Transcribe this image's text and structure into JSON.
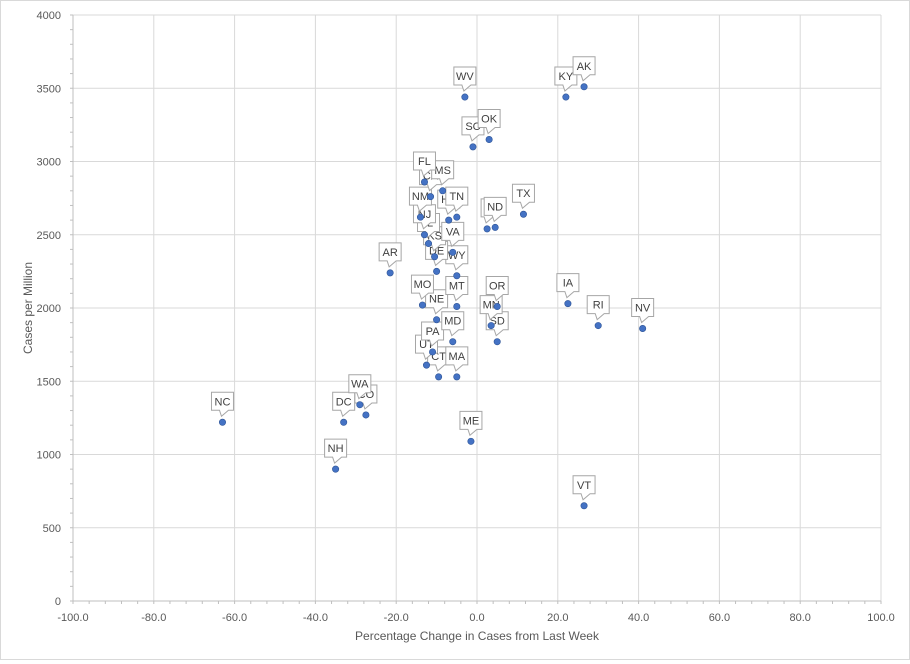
{
  "chart_data": {
    "type": "scatter",
    "title": "",
    "xlabel": "Percentage Change  in Cases from Last Week",
    "ylabel": "Cases per Million",
    "xlim": [
      -100,
      100
    ],
    "ylim": [
      0,
      4000
    ],
    "xticks": [
      -100,
      -80,
      -60,
      -40,
      -20,
      0,
      20,
      40,
      60,
      80,
      100
    ],
    "yticks": [
      0,
      500,
      1000,
      1500,
      2000,
      2500,
      3000,
      3500,
      4000
    ],
    "xtick_labels": [
      "-100.0",
      "-80.0",
      "-60.0",
      "-40.0",
      "-20.0",
      "0.0",
      "20.0",
      "40.0",
      "60.0",
      "80.0",
      "100.0"
    ],
    "ytick_labels": [
      "0",
      "500",
      "1000",
      "1500",
      "2000",
      "2500",
      "3000",
      "3500",
      "4000"
    ],
    "grid": true,
    "marker_color": "#4472c4",
    "points": [
      {
        "label": "AK",
        "x": 26.5,
        "y": 3510
      },
      {
        "label": "KY",
        "x": 22.0,
        "y": 3440
      },
      {
        "label": "WV",
        "x": -3.0,
        "y": 3440
      },
      {
        "label": "OK",
        "x": 3.0,
        "y": 3150
      },
      {
        "label": "SC",
        "x": -1.0,
        "y": 3100
      },
      {
        "label": "FL",
        "x": -13.0,
        "y": 2860
      },
      {
        "label": "MS",
        "x": -8.5,
        "y": 2800
      },
      {
        "label": "CA",
        "x": -11.5,
        "y": 2760
      },
      {
        "label": "TX",
        "x": 11.5,
        "y": 2640
      },
      {
        "label": "NM",
        "x": -14.0,
        "y": 2620
      },
      {
        "label": "TN",
        "x": -5.0,
        "y": 2620
      },
      {
        "label": "HA",
        "x": -7.0,
        "y": 2600
      },
      {
        "label": "ND",
        "x": 4.5,
        "y": 2550
      },
      {
        "label": "",
        "x": 2.5,
        "y": 2540
      },
      {
        "label": "NJ",
        "x": -13.0,
        "y": 2500
      },
      {
        "label": "IL",
        "x": -12.0,
        "y": 2440
      },
      {
        "label": "VA",
        "x": -6.0,
        "y": 2380
      },
      {
        "label": "KS",
        "x": -10.5,
        "y": 2350
      },
      {
        "label": "DE",
        "x": -10.0,
        "y": 2250
      },
      {
        "label": "WY",
        "x": -5.0,
        "y": 2220
      },
      {
        "label": "AR",
        "x": -21.5,
        "y": 2240
      },
      {
        "label": "MO",
        "x": -13.5,
        "y": 2020
      },
      {
        "label": "MT",
        "x": -5.0,
        "y": 2010
      },
      {
        "label": "OR",
        "x": 5.0,
        "y": 2010
      },
      {
        "label": "IA",
        "x": 22.5,
        "y": 2030
      },
      {
        "label": "NE",
        "x": -10.0,
        "y": 1920
      },
      {
        "label": "RI",
        "x": 30.0,
        "y": 1880
      },
      {
        "label": "NV",
        "x": 41.0,
        "y": 1860
      },
      {
        "label": "MN",
        "x": 3.5,
        "y": 1880
      },
      {
        "label": "SD",
        "x": 5.0,
        "y": 1770
      },
      {
        "label": "MD",
        "x": -6.0,
        "y": 1770
      },
      {
        "label": "PA",
        "x": -11.0,
        "y": 1700
      },
      {
        "label": "UT",
        "x": -12.5,
        "y": 1610
      },
      {
        "label": "CT",
        "x": -9.5,
        "y": 1530
      },
      {
        "label": "MA",
        "x": -5.0,
        "y": 1530
      },
      {
        "label": "WA",
        "x": -29.0,
        "y": 1340
      },
      {
        "label": "CO",
        "x": -27.5,
        "y": 1270
      },
      {
        "label": "DC",
        "x": -33.0,
        "y": 1220
      },
      {
        "label": "NC",
        "x": -63.0,
        "y": 1220
      },
      {
        "label": "ME",
        "x": -1.5,
        "y": 1090
      },
      {
        "label": "NH",
        "x": -35.0,
        "y": 900
      },
      {
        "label": "VT",
        "x": 26.5,
        "y": 650
      }
    ]
  }
}
